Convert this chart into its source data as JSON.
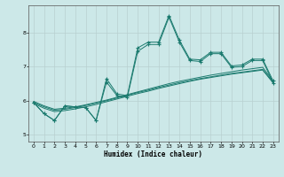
{
  "xlabel": "Humidex (Indice chaleur)",
  "line_color": "#1a7a6e",
  "bg_color": "#cce8e8",
  "grid_color": "#b8d0d0",
  "ylim": [
    4.8,
    8.8
  ],
  "xlim": [
    -0.5,
    23.5
  ],
  "yticks": [
    5,
    6,
    7,
    8
  ],
  "xticks": [
    0,
    1,
    2,
    3,
    4,
    5,
    6,
    7,
    8,
    9,
    10,
    11,
    12,
    13,
    14,
    15,
    16,
    17,
    18,
    19,
    20,
    21,
    22,
    23
  ],
  "jagged1": [
    5.95,
    5.62,
    5.42,
    5.85,
    5.82,
    5.8,
    5.42,
    6.65,
    6.2,
    6.15,
    7.55,
    7.72,
    7.72,
    8.5,
    7.78,
    7.22,
    7.2,
    7.42,
    7.42,
    7.02,
    7.05,
    7.22,
    7.22,
    6.58
  ],
  "jagged2": [
    5.95,
    5.62,
    5.42,
    5.85,
    5.82,
    5.8,
    5.42,
    6.55,
    6.15,
    6.1,
    7.45,
    7.65,
    7.65,
    8.45,
    7.72,
    7.18,
    7.15,
    7.38,
    7.38,
    6.98,
    7.0,
    7.18,
    7.18,
    6.52
  ],
  "smooth1": [
    5.98,
    5.85,
    5.75,
    5.78,
    5.82,
    5.88,
    5.95,
    6.02,
    6.1,
    6.18,
    6.26,
    6.34,
    6.42,
    6.5,
    6.57,
    6.63,
    6.69,
    6.75,
    6.8,
    6.85,
    6.9,
    6.94,
    6.98,
    6.58
  ],
  "smooth2": [
    5.95,
    5.82,
    5.72,
    5.75,
    5.8,
    5.86,
    5.93,
    6.0,
    6.08,
    6.16,
    6.24,
    6.31,
    6.39,
    6.46,
    6.53,
    6.59,
    6.65,
    6.7,
    6.75,
    6.8,
    6.84,
    6.88,
    6.92,
    6.55
  ],
  "smooth3": [
    5.92,
    5.78,
    5.68,
    5.71,
    5.76,
    5.82,
    5.89,
    5.97,
    6.05,
    6.13,
    6.21,
    6.28,
    6.36,
    6.43,
    6.5,
    6.57,
    6.63,
    6.68,
    6.73,
    6.78,
    6.82,
    6.86,
    6.9,
    6.52
  ]
}
